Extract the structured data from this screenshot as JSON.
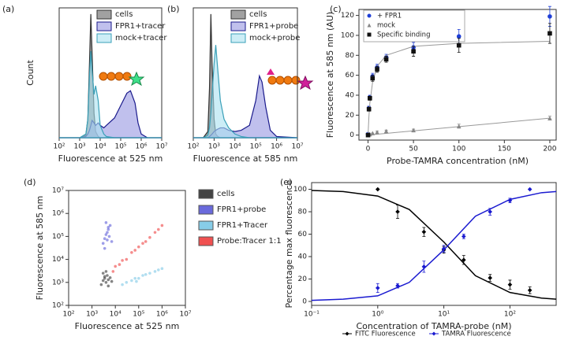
{
  "chart_data": [
    {
      "type": "area",
      "panel_label": "(a)",
      "xlabel": "Fluorescence at 525 nm",
      "ylabel": "Count",
      "xlog": true,
      "xlim": [
        100,
        10000000
      ],
      "ylim": [
        0,
        105
      ],
      "xticks": [
        {
          "value": 100,
          "label": "10²"
        },
        {
          "value": 1000,
          "label": "10³"
        },
        {
          "value": 10000,
          "label": "10⁴"
        },
        {
          "value": 100000,
          "label": "10⁵"
        },
        {
          "value": 1000000,
          "label": "10⁶"
        },
        {
          "value": 10000000,
          "label": "10⁷"
        }
      ],
      "x": [
        100,
        1000,
        2000,
        2500,
        3000,
        3500,
        4000,
        5000,
        6000,
        8000,
        10000,
        15000,
        20000,
        50000,
        100000,
        200000,
        300000,
        500000,
        700000,
        1000000,
        2000000,
        10000000
      ],
      "series": [
        {
          "name": "cells",
          "color": "#333333",
          "fill": "rgba(130,130,130,0.75)",
          "values": [
            0,
            0,
            2,
            15,
            60,
            100,
            70,
            20,
            5,
            1,
            0,
            0,
            0,
            0,
            0,
            0,
            0,
            0,
            0,
            0,
            0,
            0
          ]
        },
        {
          "name": "FPR1+tracer",
          "color": "#1a1a8c",
          "fill": "rgba(150,150,225,0.6)",
          "values": [
            0,
            0,
            1,
            3,
            6,
            10,
            14,
            12,
            10,
            12,
            10,
            8,
            10,
            16,
            26,
            36,
            38,
            28,
            12,
            3,
            0,
            0
          ]
        },
        {
          "name": "mock+tracer",
          "color": "#3aa0b8",
          "fill": "rgba(170,225,240,0.6)",
          "values": [
            0,
            0,
            3,
            15,
            50,
            70,
            55,
            35,
            42,
            30,
            10,
            3,
            1,
            0,
            0,
            0,
            0,
            0,
            0,
            0,
            0,
            0
          ]
        }
      ]
    },
    {
      "type": "area",
      "panel_label": "(b)",
      "xlabel": "Fluorescence at 585 nm",
      "xlog": true,
      "xlim": [
        100,
        10000000
      ],
      "ylim": [
        0,
        105
      ],
      "xticks": [
        {
          "value": 100,
          "label": "10²"
        },
        {
          "value": 1000,
          "label": "10³"
        },
        {
          "value": 10000,
          "label": "10⁴"
        },
        {
          "value": 100000,
          "label": "10⁵"
        },
        {
          "value": 1000000,
          "label": "10⁶"
        },
        {
          "value": 10000000,
          "label": "10⁷"
        }
      ],
      "x": [
        100,
        300,
        500,
        600,
        700,
        800,
        1000,
        1200,
        1500,
        2000,
        3000,
        5000,
        10000,
        20000,
        50000,
        100000,
        150000,
        200000,
        300000,
        500000,
        1000000,
        10000000
      ],
      "series": [
        {
          "name": "cells",
          "color": "#333333",
          "fill": "rgba(130,130,130,0.75)",
          "values": [
            0,
            0,
            5,
            40,
            100,
            60,
            15,
            3,
            1,
            0,
            0,
            0,
            0,
            0,
            0,
            0,
            0,
            0,
            0,
            0,
            0,
            0
          ]
        },
        {
          "name": "FPR1+probe",
          "color": "#1a1a8c",
          "fill": "rgba(150,150,225,0.6)",
          "values": [
            0,
            0,
            0,
            1,
            2,
            3,
            5,
            6,
            7,
            8,
            8,
            6,
            5,
            6,
            10,
            30,
            50,
            45,
            25,
            6,
            1,
            0
          ]
        },
        {
          "name": "mock+probe",
          "color": "#3aa0b8",
          "fill": "rgba(170,225,240,0.6)",
          "values": [
            0,
            0,
            2,
            8,
            20,
            35,
            60,
            75,
            55,
            30,
            15,
            8,
            3,
            1,
            0,
            0,
            0,
            0,
            0,
            0,
            0,
            0
          ]
        }
      ]
    },
    {
      "type": "scatter",
      "panel_label": "(c)",
      "xlabel": "Probe-TAMRA concentration (nM)",
      "ylabel": "Fluorescence at 585 nm (AU)",
      "xlim": [
        -10,
        207
      ],
      "ylim": [
        -5,
        126
      ],
      "xticks": [
        0,
        50,
        100,
        150,
        200
      ],
      "yticks": [
        0,
        20,
        40,
        60,
        80,
        100,
        120
      ],
      "x": [
        0,
        1,
        2,
        5,
        10,
        20,
        50,
        100,
        200
      ],
      "series": [
        {
          "name": "+ FPR1",
          "color": "#1f3fd6",
          "marker": "circle",
          "values": [
            1,
            27,
            38,
            59,
            68,
            78,
            88,
            99,
            119
          ],
          "errors": [
            1,
            2,
            2,
            3,
            3,
            3,
            5,
            7,
            10
          ]
        },
        {
          "name": "mock",
          "color": "#888888",
          "marker": "triangle",
          "values": [
            0,
            1,
            1,
            2,
            3,
            4,
            5,
            9,
            17
          ],
          "errors": [
            0,
            0,
            0,
            0,
            1,
            1,
            1,
            2,
            2
          ],
          "fit": [
            0,
            0.1,
            0.2,
            0.4,
            0.9,
            1.7,
            4.3,
            8.5,
            17
          ]
        },
        {
          "name": "Specific binding",
          "color": "#111111",
          "marker": "square",
          "values": [
            0,
            26,
            37,
            57,
            66,
            76,
            84,
            90,
            102
          ],
          "errors": [
            1,
            2,
            2,
            3,
            3,
            3,
            5,
            7,
            10
          ],
          "fit": [
            0,
            19,
            32,
            53,
            69,
            80,
            89,
            92,
            94
          ]
        }
      ]
    },
    {
      "type": "scatter",
      "panel_label": "(d)",
      "xlabel": "Fluorescence at 525 nm",
      "ylabel": "Fluorescence at 585 nm",
      "xlog": true,
      "ylog": true,
      "xlim": [
        100,
        10000000
      ],
      "ylim": [
        100,
        10000000
      ],
      "xticks": [
        {
          "value": 100,
          "label": "10²"
        },
        {
          "value": 1000,
          "label": "10³"
        },
        {
          "value": 10000,
          "label": "10⁴"
        },
        {
          "value": 100000,
          "label": "10⁵"
        },
        {
          "value": 1000000,
          "label": "10⁶"
        },
        {
          "value": 10000000,
          "label": "10⁷"
        }
      ],
      "yticks": [
        {
          "value": 100,
          "label": "10²"
        },
        {
          "value": 1000,
          "label": "10³"
        },
        {
          "value": 10000,
          "label": "10⁴"
        },
        {
          "value": 100000,
          "label": "10⁵"
        },
        {
          "value": 1000000,
          "label": "10⁶"
        },
        {
          "value": 10000000,
          "label": "10⁷"
        }
      ],
      "series": [
        {
          "name": "cells",
          "color": "#444444",
          "x": [
            2500,
            3000,
            3500,
            4000,
            4500,
            5000,
            6000,
            3000,
            4000,
            5000,
            7000,
            3500
          ],
          "values": [
            800,
            1200,
            1500,
            1000,
            2000,
            1300,
            1600,
            2500,
            3000,
            700,
            1100,
            1800
          ]
        },
        {
          "name": "FPR1+probe",
          "color": "#6a6adc",
          "x": [
            3000,
            3500,
            4000,
            4500,
            5000,
            5500,
            6000,
            4000,
            5000,
            7000,
            3500,
            4500
          ],
          "values": [
            50000,
            80000,
            120000,
            150000,
            200000,
            100000,
            300000,
            400000,
            250000,
            60000,
            30000,
            70000
          ]
        },
        {
          "name": "FPR1+Tracer",
          "color": "#87cde8",
          "x": [
            20000,
            30000,
            50000,
            70000,
            100000,
            150000,
            200000,
            300000,
            500000,
            700000,
            1000000,
            80000
          ],
          "values": [
            800,
            1000,
            1200,
            1500,
            1500,
            2000,
            2200,
            2500,
            3000,
            3500,
            4000,
            1100
          ]
        },
        {
          "name": "Probe:Tracer 1:1",
          "color": "#f05050",
          "x": [
            8000,
            10000,
            15000,
            20000,
            30000,
            50000,
            70000,
            100000,
            150000,
            200000,
            300000,
            500000,
            700000,
            1000000
          ],
          "values": [
            3000,
            5000,
            6000,
            9000,
            10000,
            20000,
            25000,
            35000,
            50000,
            60000,
            90000,
            150000,
            200000,
            300000
          ]
        }
      ]
    },
    {
      "type": "scatter",
      "panel_label": "(e)",
      "xlabel": "Concentration of TAMRA-probe (nM)",
      "ylabel": "Percentage max fluorescence",
      "xlog": true,
      "xlim": [
        0.1,
        500
      ],
      "ylim": [
        -3.5,
        106
      ],
      "xticks": [
        {
          "value": 0.1,
          "label": "10⁻¹"
        },
        {
          "value": 1,
          "label": "10⁰"
        },
        {
          "value": 10,
          "label": "10¹"
        },
        {
          "value": 100,
          "label": "10²"
        }
      ],
      "yticks": [
        0,
        20,
        40,
        60,
        80,
        100
      ],
      "x": [
        1,
        2,
        5,
        10,
        20,
        50,
        100,
        200
      ],
      "fit_x": [
        0.1,
        0.3,
        1,
        3,
        10,
        30,
        100,
        300,
        500
      ],
      "series": [
        {
          "name": "FITC Fluorescence",
          "color": "#000000",
          "marker": "diamond",
          "values": [
            100,
            80,
            62,
            46,
            37,
            21,
            15,
            10
          ],
          "errors": [
            0,
            6,
            4,
            3,
            4,
            3,
            4,
            3
          ],
          "fit": [
            99,
            98,
            94,
            82,
            53,
            23,
            8,
            3,
            2
          ]
        },
        {
          "name": "TAMRA Fluorescence",
          "color": "#1a1ad0",
          "marker": "diamond",
          "values": [
            12,
            14,
            31,
            47,
            58,
            80,
            90,
            100
          ],
          "errors": [
            4,
            2,
            5,
            3,
            2,
            3,
            2,
            0
          ],
          "fit": [
            1,
            2,
            5,
            17,
            46,
            76,
            91,
            97,
            98
          ]
        }
      ]
    }
  ]
}
